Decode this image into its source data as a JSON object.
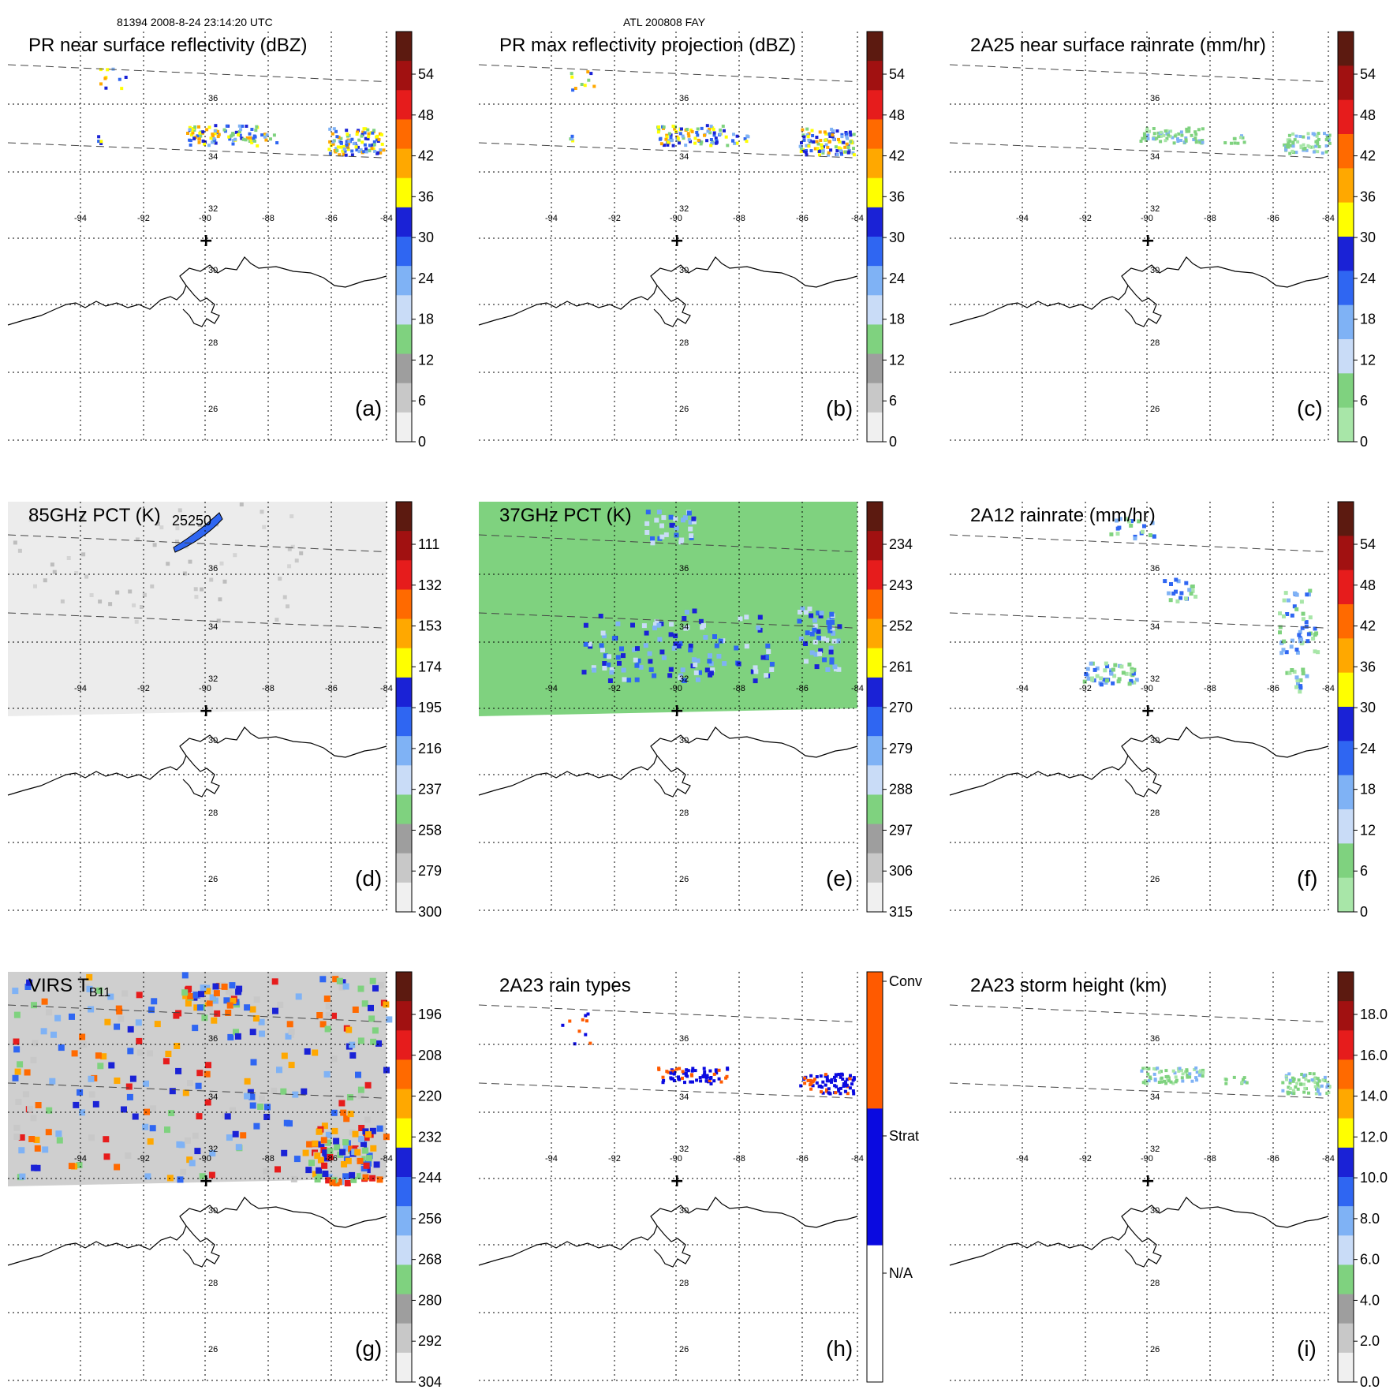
{
  "header": {
    "left": "81394 2008-8-24 23:14:20 UTC",
    "center": "ATL 200808 FAY"
  },
  "map": {
    "lon_ticks": [
      "-94",
      "-92",
      "-90",
      "-88",
      "-86",
      "-84"
    ],
    "lat_ticks": [
      "36",
      "34",
      "32",
      "30",
      "28",
      "26"
    ],
    "center_marker": "+"
  },
  "panels": [
    {
      "id": "a",
      "title": "PR near surface reflectivity (dBZ)",
      "label": "(a)",
      "field": "swath",
      "scale_labels": [
        "54",
        "48",
        "42",
        "36",
        "30",
        "24",
        "18",
        "12",
        "6",
        "0"
      ],
      "colors": [
        "#5c1a10",
        "#a11111",
        "#e61c1c",
        "#ff6a00",
        "#ffa800",
        "#ffff00",
        "#1a22d6",
        "#2f66f2",
        "#7fb2f5",
        "#c9dcf7",
        "#7fd27f",
        "#9e9e9e",
        "#c8c8c8",
        "#f0f0f0"
      ]
    },
    {
      "id": "b",
      "title": "PR max reflectivity projection (dBZ)",
      "label": "(b)",
      "field": "swath-contour",
      "scale_labels": [
        "54",
        "48",
        "42",
        "36",
        "30",
        "24",
        "18",
        "12",
        "6",
        "0"
      ],
      "colors": [
        "#5c1a10",
        "#a11111",
        "#e61c1c",
        "#ff6a00",
        "#ffa800",
        "#ffff00",
        "#1a22d6",
        "#2f66f2",
        "#7fb2f5",
        "#c9dcf7",
        "#7fd27f",
        "#9e9e9e",
        "#c8c8c8",
        "#f0f0f0"
      ]
    },
    {
      "id": "c",
      "title": "2A25 near surface rainrate (mm/hr)",
      "label": "(c)",
      "field": "swath-green",
      "scale_labels": [
        "54",
        "48",
        "42",
        "36",
        "30",
        "24",
        "18",
        "12",
        "6",
        "0"
      ],
      "colors": [
        "#5c1a10",
        "#a11111",
        "#e61c1c",
        "#ff6a00",
        "#ffa800",
        "#ffff00",
        "#1a22d6",
        "#2f66f2",
        "#7fb2f5",
        "#c9dcf7",
        "#7fd27f",
        "#a8e6a8"
      ]
    },
    {
      "id": "d",
      "title": "85GHz PCT (K)",
      "label": "(d)",
      "field": "grey-wide",
      "extra_text": "25250",
      "scale_labels": [
        "111",
        "132",
        "153",
        "174",
        "195",
        "216",
        "237",
        "258",
        "279",
        "300"
      ],
      "colors": [
        "#5c1a10",
        "#a11111",
        "#e61c1c",
        "#ff6a00",
        "#ffa800",
        "#ffff00",
        "#1a22d6",
        "#2f66f2",
        "#7fb2f5",
        "#c9dcf7",
        "#7fd27f",
        "#9e9e9e",
        "#c8c8c8",
        "#f0f0f0"
      ]
    },
    {
      "id": "e",
      "title": "37GHz PCT (K)",
      "label": "(e)",
      "field": "green-wide",
      "scale_labels": [
        "234",
        "243",
        "252",
        "261",
        "270",
        "279",
        "288",
        "297",
        "306",
        "315"
      ],
      "colors": [
        "#5c1a10",
        "#a11111",
        "#e61c1c",
        "#ff6a00",
        "#ffa800",
        "#ffff00",
        "#1a22d6",
        "#2f66f2",
        "#7fb2f5",
        "#c9dcf7",
        "#7fd27f",
        "#9e9e9e",
        "#c8c8c8",
        "#f0f0f0"
      ]
    },
    {
      "id": "f",
      "title": "2A12 rainrate (mm/hr)",
      "label": "(f)",
      "field": "blobs",
      "scale_labels": [
        "54",
        "48",
        "42",
        "36",
        "30",
        "24",
        "18",
        "12",
        "6",
        "0"
      ],
      "colors": [
        "#5c1a10",
        "#a11111",
        "#e61c1c",
        "#ff6a00",
        "#ffa800",
        "#ffff00",
        "#1a22d6",
        "#2f66f2",
        "#7fb2f5",
        "#c9dcf7",
        "#7fd27f",
        "#a8e6a8"
      ]
    },
    {
      "id": "g",
      "title": "VIRS T",
      "title_sub": "B11",
      "label": "(g)",
      "field": "virs",
      "scale_labels": [
        "196",
        "208",
        "220",
        "232",
        "244",
        "256",
        "268",
        "280",
        "292",
        "304"
      ],
      "colors": [
        "#5c1a10",
        "#a11111",
        "#e61c1c",
        "#ff6a00",
        "#ffa800",
        "#ffff00",
        "#1a22d6",
        "#2f66f2",
        "#7fb2f5",
        "#c9dcf7",
        "#7fd27f",
        "#9e9e9e",
        "#c8c8c8",
        "#f0f0f0"
      ]
    },
    {
      "id": "h",
      "title": "2A23 rain types",
      "label": "(h)",
      "field": "raintype",
      "scale_labels": [
        "Conv",
        "Strat",
        "N/A"
      ],
      "colors": [
        "#ff5a00",
        "#0a0ae0",
        "#ffffff"
      ]
    },
    {
      "id": "i",
      "title": "2A23 storm height (km)",
      "label": "(i)",
      "field": "swath-green",
      "scale_labels": [
        "18.0",
        "16.0",
        "14.0",
        "12.0",
        "10.0",
        "8.0",
        "6.0",
        "4.0",
        "2.0",
        "0.0"
      ],
      "colors": [
        "#5c1a10",
        "#a11111",
        "#e61c1c",
        "#ff6a00",
        "#ffa800",
        "#ffff00",
        "#1a22d6",
        "#2f66f2",
        "#7fb2f5",
        "#c9dcf7",
        "#7fd27f",
        "#9e9e9e",
        "#c8c8c8",
        "#f0f0f0"
      ]
    }
  ]
}
